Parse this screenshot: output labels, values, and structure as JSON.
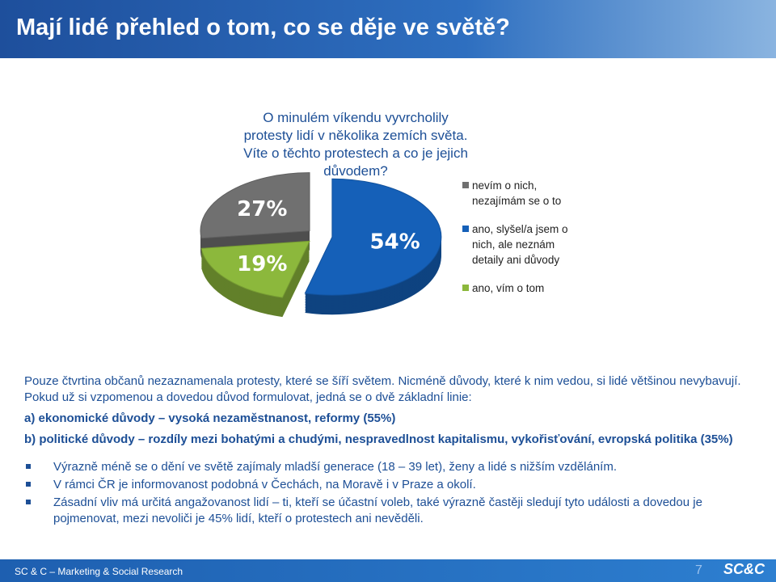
{
  "header": {
    "title": "Mají lidé přehled o tom, co se děje ve světě?"
  },
  "question": "O minulém víkendu vyvrcholily protesty lidí v několika zemích světa. Víte o těchto protestech a co je jejich důvodem?",
  "chart_data": {
    "type": "pie",
    "categories": [
      "nevím o nich, nezajímám se o to",
      "ano, slyšel/a jsem o nich, ale neznám detaily ani důvody",
      "ano, vím o tom"
    ],
    "values": [
      27,
      54,
      19
    ],
    "value_labels": [
      "27%",
      "54%",
      "19%"
    ],
    "colors": [
      "#707070",
      "#1560b8",
      "#8cb83c"
    ]
  },
  "text": {
    "intro": "Pouze čtvrtina občanů nezaznamenala protesty, které se šíří světem. Nicméně důvody, které k nim vedou, si lidé většinou nevybavují. Pokud už si vzpomenou a dovedou důvod formulovat, jedná se o dvě základní linie:",
    "points": [
      "a) ekonomické důvody – vysoká nezaměstnanost, reformy (55%)",
      "b) politické důvody – rozdíly mezi bohatými a chudými, nespravedlnost kapitalismu, vykořisťování, evropská politika (35%)"
    ],
    "bullets": [
      "Výrazně méně se o dění ve světě zajímaly mladší generace (18 – 39 let), ženy a lidé s nižším vzděláním.",
      "V rámci ČR je informovanost podobná v Čechách, na Moravě i v Praze a okolí.",
      "Zásadní vliv má určitá angažovanost lidí – ti, kteří se účastní voleb, také výrazně častěji sledují tyto události a dovedou je pojmenovat, mezi nevoliči je 45% lidí, kteří o protestech ani nevěděli."
    ]
  },
  "footer": {
    "company": "SC & C – Marketing & Social Research",
    "page": "7",
    "logo": "SC&C"
  }
}
